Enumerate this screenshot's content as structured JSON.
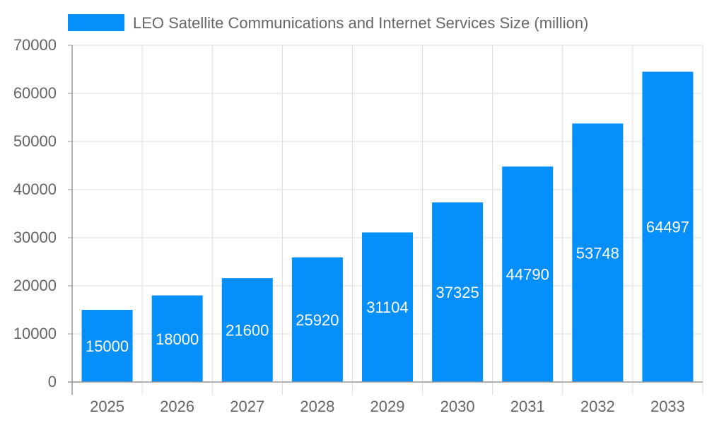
{
  "chart_data": {
    "type": "bar",
    "title": "",
    "xlabel": "",
    "ylabel": "",
    "categories": [
      "2025",
      "2026",
      "2027",
      "2028",
      "2029",
      "2030",
      "2031",
      "2032",
      "2033"
    ],
    "series": [
      {
        "name": "LEO Satellite Communications and Internet Services Size (million)",
        "values": [
          15000,
          18000,
          21600,
          25920,
          31104,
          37325,
          44790,
          53748,
          64497
        ]
      }
    ],
    "ylim": [
      0,
      70000
    ],
    "yticks": [
      0,
      10000,
      20000,
      30000,
      40000,
      50000,
      60000,
      70000
    ],
    "grid": true,
    "legend_position": "top",
    "data_labels": true,
    "colors": {
      "bar": "#058ffb",
      "grid": "#dddddd",
      "axis": "#999999",
      "text": "#666666",
      "label": "#ffffff"
    }
  }
}
